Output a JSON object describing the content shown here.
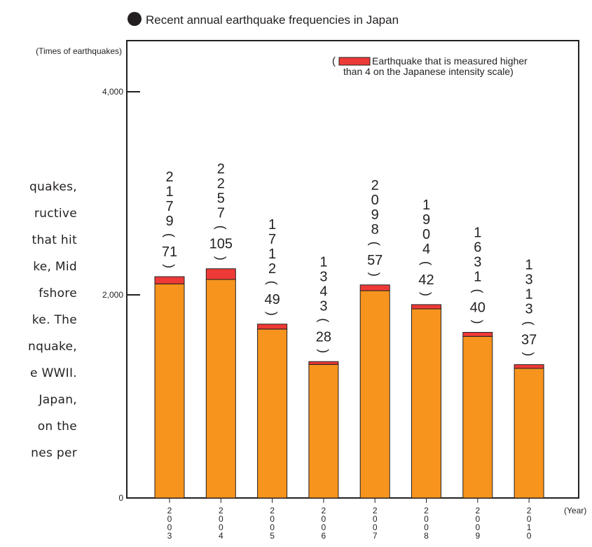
{
  "side_text_lines": [
    "quakes,",
    "ructive",
    "that hit",
    "ke, Mid",
    "fshore",
    "ke. The",
    "nquake,",
    "e WWII.",
    "Japan,",
    "on the",
    "nes per"
  ],
  "chart_data": {
    "type": "bar",
    "title": "Recent annual earthquake frequencies in Japan",
    "ylabel": "(Times of earthquakes)",
    "xlabel": "(Year)",
    "ylim": [
      0,
      4000
    ],
    "yticks": [
      0,
      2000,
      4000
    ],
    "ytick_labels": [
      "0",
      "2,000",
      "4,000"
    ],
    "categories": [
      "2003",
      "2004",
      "2005",
      "2006",
      "2007",
      "2008",
      "2009",
      "2010"
    ],
    "totals": [
      "2179",
      "2257",
      "1712",
      "1343",
      "2098",
      "1904",
      "1631",
      "1313"
    ],
    "strong": [
      "71",
      "105",
      "49",
      "28",
      "57",
      "42",
      "40",
      "37"
    ],
    "series": [
      {
        "values": [
          2108,
          2152,
          1663,
          1315,
          2041,
          1862,
          1591,
          1276
        ],
        "color": "#f7941d"
      },
      {
        "values": [
          71,
          105,
          49,
          28,
          57,
          42,
          40,
          37
        ],
        "color": "#ee3a37"
      }
    ],
    "legend": {
      "position": "top-right",
      "open": "(",
      "line1": "Earthquake that is measured higher",
      "line2": "than 4 on the Japanese intensity scale)"
    },
    "grid": false
  }
}
